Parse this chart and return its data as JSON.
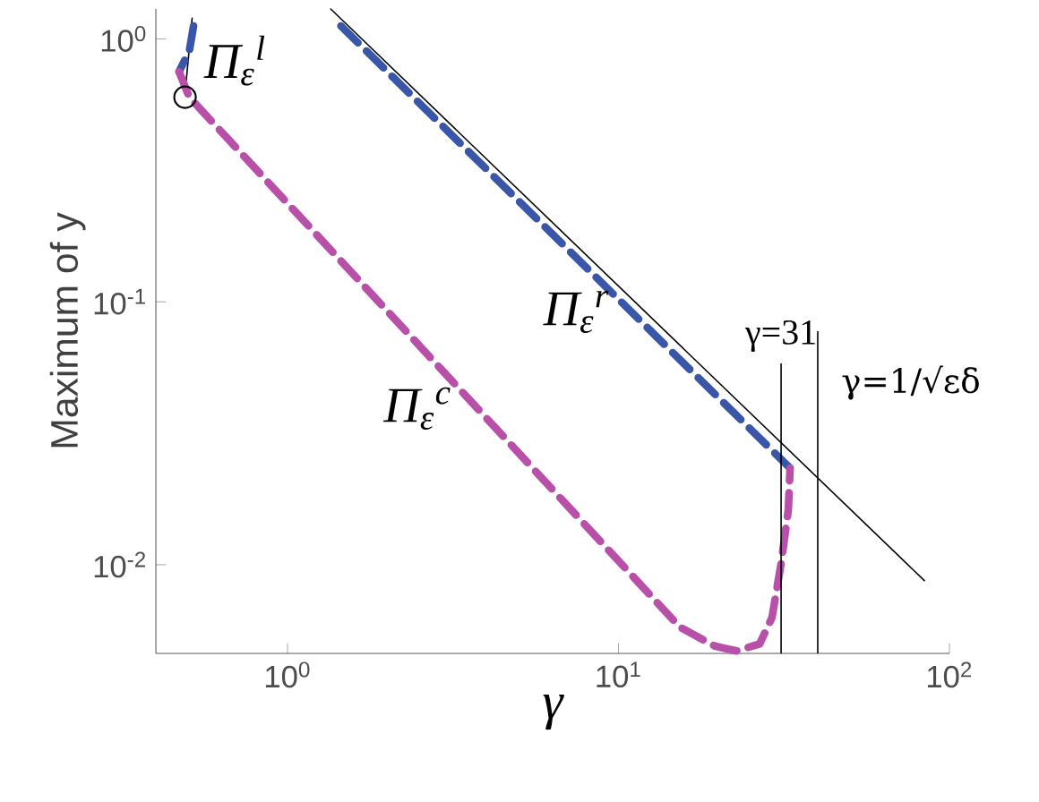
{
  "chart_data": {
    "type": "line",
    "xlabel": "γ",
    "ylabel": "Maximum of y",
    "log": "xy",
    "xlim": [
      0.4,
      100
    ],
    "ylim": [
      0.0046,
      1.3
    ],
    "xticks": [
      {
        "value": 1,
        "label": "10$^{0}$"
      },
      {
        "value": 10,
        "label": "10$^{1}$"
      },
      {
        "value": 100,
        "label": "10$^{2}$"
      }
    ],
    "yticks": [
      {
        "value": 0.01,
        "label": "10$^{-2}$"
      },
      {
        "value": 0.1,
        "label": "10$^{-1}$"
      },
      {
        "value": 1,
        "label": "10$^{0}$"
      }
    ],
    "grid": false,
    "series": [
      {
        "color": "#000000",
        "line_style": "solid",
        "x": [
          0.515,
          0.49
        ],
        "values": [
          1.2,
          0.62
        ]
      },
      {
        "color": "#000000",
        "line_style": "solid",
        "x": [
          1.35,
          84
        ],
        "values": [
          1.3,
          0.0087
        ]
      },
      {
        "color": "#3a56a8",
        "line_style": "dashed",
        "x": [
          0.52,
          0.505,
          0.47
        ],
        "values": [
          1.12,
          0.9,
          0.75
        ]
      },
      {
        "color": "#3a56a8",
        "line_style": "dashed",
        "x": [
          1.45,
          33
        ],
        "values": [
          1.12,
          0.0233
        ]
      },
      {
        "color": "#b84fa8",
        "line_style": "dashed",
        "x": [
          0.47,
          0.505,
          3.03,
          15.3,
          19.6,
          22.7,
          26.7,
          29.1,
          31,
          32.6,
          33
        ],
        "values": [
          0.75,
          0.6,
          0.0525,
          0.0058,
          0.0049,
          0.0047,
          0.005,
          0.0063,
          0.0101,
          0.0162,
          0.0233
        ]
      },
      {
        "type": "scatter",
        "marker": "circle",
        "color": "#000000",
        "x": [
          0.49
        ],
        "values": [
          0.6
        ]
      }
    ],
    "ref_lines": [
      {
        "axis": "x",
        "value": 31,
        "label": "γ=31",
        "color": "#000000"
      },
      {
        "axis": "x",
        "value": 40,
        "color": "#000000"
      }
    ],
    "annotations": [
      "Π$_{ε}$$^{l}$",
      "Π$_{ε}$$^{r}$",
      "Π$_{ε}$$^{c}$",
      "γ=1/√εδ"
    ]
  }
}
